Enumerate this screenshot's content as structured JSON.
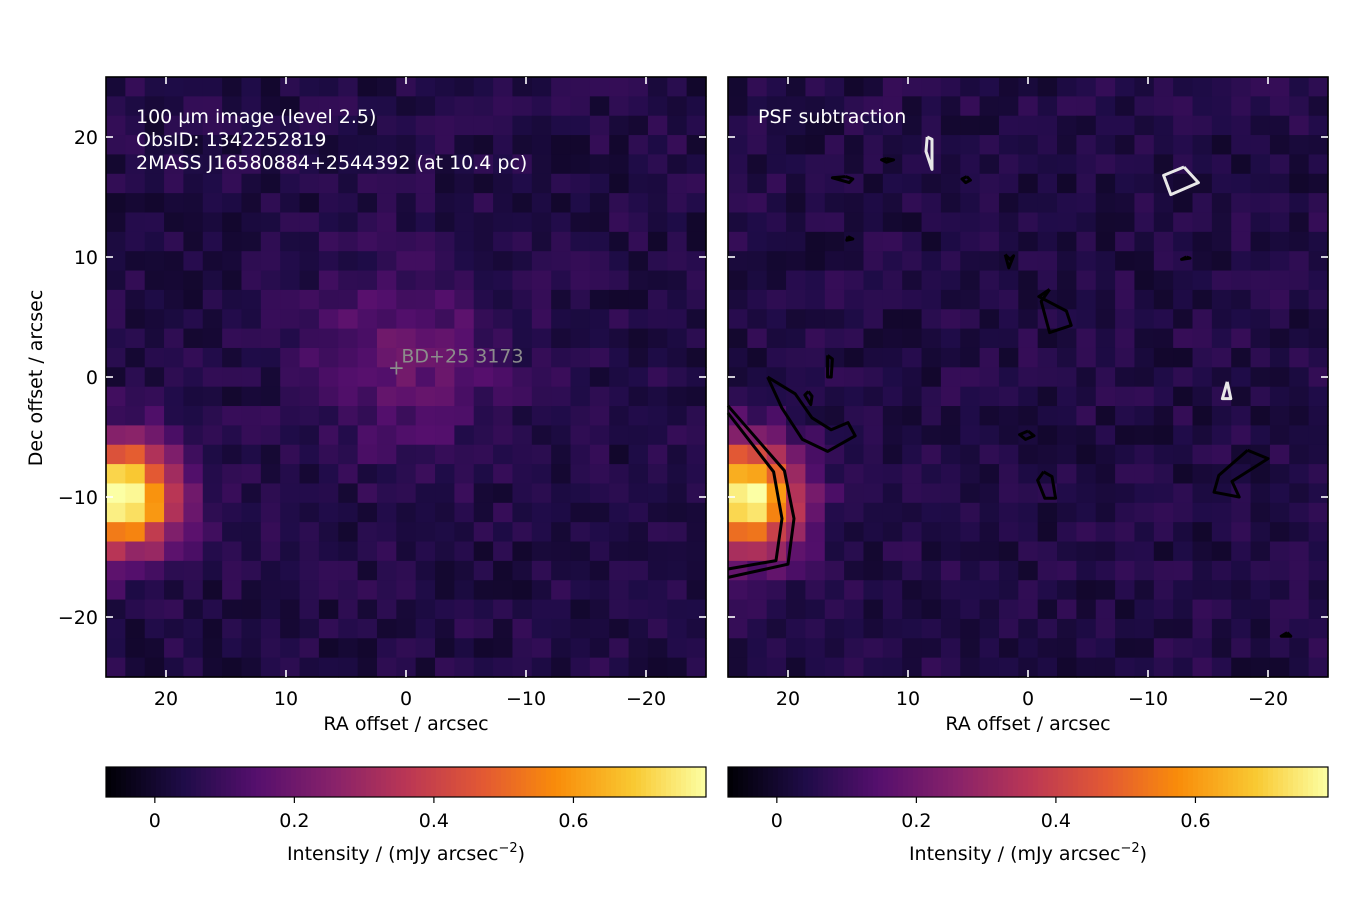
{
  "chart_data": [
    {
      "type": "heatmap",
      "title": "",
      "annotations": [
        "100 µm image (level 2.5)",
        "ObsID: 1342252819",
        "2MASS J16580884+2544392 (at 10.4 pc)"
      ],
      "source_label": "BD+25  3173",
      "source_position": [
        0.8,
        0.8
      ],
      "xlabel": "RA offset / arcsec",
      "ylabel": "Dec offset / arcsec",
      "xlim": [
        25,
        -25
      ],
      "ylim": [
        -25,
        25
      ],
      "xticks": [
        20,
        10,
        0,
        -10,
        -20
      ],
      "xtick_labels": [
        "20",
        "10",
        "0",
        "−10",
        "−20"
      ],
      "yticks": [
        20,
        10,
        0,
        -10,
        -20
      ],
      "ytick_labels": [
        "20",
        "10",
        "0",
        "−10",
        "−20"
      ],
      "colormap": "inferno",
      "grid": false,
      "pixel_scale_arcsec": 3.2,
      "colorbar": {
        "label_main": "Intensity / (mJy arcsec",
        "label_sup": "−2",
        "label_end": ")",
        "range": [
          -0.07,
          0.79
        ],
        "ticks": [
          0,
          0.2,
          0.4,
          0.6
        ],
        "tick_labels": [
          "0",
          "0.2",
          "0.4",
          "0.6"
        ]
      },
      "features": [
        {
          "kind": "bright-source",
          "x": 23.5,
          "y": -10.0,
          "peak": 0.78
        },
        {
          "kind": "faint-extended-emission",
          "x": 0.0,
          "y": 1.5,
          "peak": 0.14
        }
      ]
    },
    {
      "type": "heatmap",
      "title": "",
      "annotations": [
        "PSF subtraction"
      ],
      "xlabel": "RA offset / arcsec",
      "ylabel": "",
      "xlim": [
        25,
        -25
      ],
      "ylim": [
        -25,
        25
      ],
      "xticks": [
        20,
        10,
        0,
        -10,
        -20
      ],
      "xtick_labels": [
        "20",
        "10",
        "0",
        "−10",
        "−20"
      ],
      "yticks": [
        20,
        10,
        0,
        -10,
        -20
      ],
      "colormap": "inferno",
      "grid": false,
      "colorbar": {
        "label_main": "Intensity / (mJy arcsec",
        "label_sup": "−2",
        "label_end": ")",
        "range": [
          -0.07,
          0.79
        ],
        "ticks": [
          0,
          0.2,
          0.4,
          0.6
        ],
        "tick_labels": [
          "0",
          "0.2",
          "0.4",
          "0.6"
        ]
      },
      "contours": [
        {
          "color": "#000000",
          "points": [
            [
              21.7,
              0.0
            ],
            [
              19.4,
              -1.4
            ],
            [
              18.0,
              -3.4
            ],
            [
              16.4,
              -4.4
            ],
            [
              15.0,
              -3.8
            ],
            [
              14.4,
              -4.9
            ],
            [
              16.7,
              -6.2
            ],
            [
              18.8,
              -5.2
            ],
            [
              20.5,
              -2.6
            ],
            [
              21.7,
              0.0
            ]
          ]
        },
        {
          "color": "#000000",
          "points": [
            [
              16.7,
              1.8
            ],
            [
              16.3,
              1.5
            ],
            [
              16.4,
              0.0
            ],
            [
              16.7,
              0.0
            ],
            [
              16.7,
              1.8
            ]
          ]
        },
        {
          "color": "#000000",
          "points": [
            [
              18.3,
              -1.2
            ],
            [
              18.0,
              -1.6
            ],
            [
              18.1,
              -2.3
            ],
            [
              18.6,
              -1.5
            ],
            [
              18.3,
              -1.2
            ]
          ]
        },
        {
          "color": "#000000",
          "points": [
            [
              15.2,
              16.7
            ],
            [
              14.6,
              16.5
            ],
            [
              14.9,
              16.2
            ],
            [
              16.3,
              16.6
            ],
            [
              15.2,
              16.7
            ]
          ]
        },
        {
          "color": "#000000",
          "points": [
            [
              11.8,
              18.2
            ],
            [
              11.2,
              18.1
            ],
            [
              11.8,
              17.9
            ],
            [
              12.2,
              18.1
            ],
            [
              11.8,
              18.2
            ]
          ]
        },
        {
          "color": "#000000",
          "points": [
            [
              5.1,
              16.7
            ],
            [
              4.8,
              16.4
            ],
            [
              5.2,
              16.2
            ],
            [
              5.5,
              16.5
            ],
            [
              5.1,
              16.7
            ]
          ]
        },
        {
          "color": "#000000",
          "points": [
            [
              15.0,
              11.7
            ],
            [
              14.6,
              11.5
            ],
            [
              15.1,
              11.4
            ],
            [
              15.0,
              11.7
            ]
          ]
        },
        {
          "color": "#000000",
          "points": [
            [
              1.9,
              10.2
            ],
            [
              1.5,
              9.8
            ],
            [
              1.2,
              10.1
            ],
            [
              1.6,
              9.1
            ],
            [
              1.9,
              10.2
            ]
          ]
        },
        {
          "color": "#000000",
          "points": [
            [
              -1.8,
              7.3
            ],
            [
              -0.9,
              6.7
            ],
            [
              -3.2,
              5.5
            ],
            [
              -3.6,
              4.3
            ],
            [
              -1.8,
              3.7
            ],
            [
              -1.1,
              6.3
            ],
            [
              -1.8,
              7.3
            ]
          ]
        },
        {
          "color": "#000000",
          "points": [
            [
              0.0,
              -4.5
            ],
            [
              -0.5,
              -4.9
            ],
            [
              0.2,
              -5.2
            ],
            [
              0.7,
              -4.8
            ],
            [
              0.0,
              -4.5
            ]
          ]
        },
        {
          "color": "#000000",
          "points": [
            [
              -1.3,
              -7.9
            ],
            [
              -2.0,
              -8.3
            ],
            [
              -2.3,
              -10.1
            ],
            [
              -1.4,
              -10.1
            ],
            [
              -0.8,
              -8.6
            ],
            [
              -1.3,
              -7.9
            ]
          ]
        },
        {
          "color": "#000000",
          "points": [
            [
              -18.3,
              -6.1
            ],
            [
              -20.0,
              -6.8
            ],
            [
              -17.0,
              -8.7
            ],
            [
              -17.6,
              -10.0
            ],
            [
              -15.5,
              -9.6
            ],
            [
              -15.9,
              -8.2
            ],
            [
              -18.3,
              -6.1
            ]
          ]
        },
        {
          "color": "#000000",
          "points": [
            [
              -13.2,
              10.0
            ],
            [
              -12.8,
              9.8
            ],
            [
              -13.5,
              9.9
            ],
            [
              -13.2,
              10.0
            ]
          ]
        },
        {
          "color": "#000000",
          "points": [
            [
              -21.6,
              -21.3
            ],
            [
              -21.1,
              -21.6
            ],
            [
              -21.9,
              -21.6
            ],
            [
              -21.6,
              -21.3
            ]
          ]
        },
        {
          "color": "#000000",
          "points": [
            [
              25,
              -2.4
            ],
            [
              20.3,
              -7.8
            ],
            [
              19.5,
              -11.8
            ],
            [
              20.0,
              -15.6
            ],
            [
              25,
              -16.7
            ]
          ]
        },
        {
          "color": "#000000",
          "points": [
            [
              25,
              -3.0
            ],
            [
              21.2,
              -7.9
            ],
            [
              20.5,
              -11.8
            ],
            [
              21.0,
              -15.3
            ],
            [
              25,
              -16.0
            ]
          ]
        },
        {
          "color": "#e8e8e8",
          "points": [
            [
              8.4,
              20.0
            ],
            [
              8.0,
              19.8
            ],
            [
              8.0,
              17.3
            ],
            [
              8.5,
              18.8
            ],
            [
              8.4,
              20.0
            ]
          ]
        },
        {
          "color": "#e8e8e8",
          "points": [
            [
              -13.0,
              17.5
            ],
            [
              -14.2,
              16.2
            ],
            [
              -11.9,
              15.2
            ],
            [
              -11.3,
              16.8
            ],
            [
              -13.0,
              17.5
            ]
          ]
        },
        {
          "color": "#e8e8e8",
          "points": [
            [
              -16.6,
              -0.4
            ],
            [
              -16.2,
              -1.8
            ],
            [
              -16.9,
              -1.8
            ],
            [
              -16.6,
              -0.4
            ]
          ]
        }
      ],
      "features": [
        {
          "kind": "residual-bright-source",
          "x": 23.5,
          "y": -10.0,
          "peak": 0.78
        }
      ]
    }
  ]
}
